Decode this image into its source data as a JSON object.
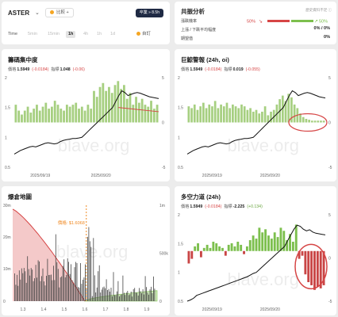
{
  "header": {
    "symbol": "ASTER",
    "compare_label": "比較",
    "time_button": "卒業 » 8.5h",
    "timeframe_label": "Time",
    "timeframes": [
      "5min",
      "15min",
      "1h",
      "4h",
      "1h",
      "1d"
    ],
    "active_timeframe_index": 2,
    "custom_label": "自訂"
  },
  "resonance": {
    "title": "共振分析",
    "settings_label": "歷史資料不足 ⓘ",
    "rows": [
      {
        "label": "漲跌機率",
        "value": ""
      },
      {
        "label": "上漲 / 下跌平均幅度",
        "value": "0% / 0%"
      },
      {
        "label": "期望值",
        "value": "0%"
      }
    ],
    "left_pct": "50%",
    "right_pct": "50%",
    "colors": {
      "neg": "#d64545",
      "pos": "#7cbf4d"
    }
  },
  "panels": {
    "p1": {
      "title": "籌碼集中度",
      "price_label": "價格",
      "price": "1.5949",
      "price_change": "(-0.0184)",
      "ind_label": "指標",
      "ind": "1.048",
      "ind_change": "(-0.06)"
    },
    "p2": {
      "title": "巨鯨警報 (24h, oi)",
      "price_label": "價格",
      "price": "1.5949",
      "price_change": "(-0.0184)",
      "ind_label": "指標",
      "ind": "0.019",
      "ind_change": "(-0.055)"
    },
    "p3": {
      "title": "爆倉地圖",
      "price_tag": "價格: $1.6068"
    },
    "p4": {
      "title": "多空力道 (24h)",
      "price_label": "價格",
      "price": "1.5949",
      "price_change": "(-0.0184)",
      "ind_label": "指標",
      "ind": "-2.225",
      "ind_change": "(+0.134)"
    }
  },
  "watermark": "blave.org",
  "chart_data": [
    {
      "type": "bar",
      "title": "籌碼集中度",
      "x_ticks": [
        "2025/09/19",
        "2025/09/20"
      ],
      "y_left_ticks": [
        "2",
        "1.5",
        "1",
        "0.5"
      ],
      "y_right_ticks": [
        "5",
        "0",
        "-5"
      ],
      "ylim_left": [
        0.5,
        2
      ],
      "ylim_right": [
        -5,
        5
      ],
      "bars": [
        0.9,
        0.6,
        0.4,
        0.6,
        0.8,
        0.5,
        0.7,
        0.9,
        0.6,
        0.8,
        1.0,
        0.7,
        0.8,
        1.1,
        0.9,
        0.7,
        0.6,
        0.9,
        0.8,
        0.9,
        1.0,
        0.7,
        0.8,
        0.6,
        0.9,
        0.7,
        1.6,
        1.3,
        1.8,
        2.0,
        1.6,
        1.8,
        1.5,
        1.9,
        2.1,
        1.7,
        1.9,
        1.2,
        1.5,
        0.9,
        1.3,
        1.0,
        1.2,
        0.9,
        0.8,
        1.1,
        0.7,
        0.9
      ],
      "line": [
        0.72,
        0.75,
        0.78,
        0.8,
        0.82,
        0.84,
        0.85,
        0.84,
        0.86,
        0.88,
        0.9,
        0.91,
        0.9,
        0.89,
        0.9,
        0.93,
        0.95,
        0.96,
        0.97,
        0.98,
        0.98,
        0.99,
        1.0,
        1.05,
        1.1,
        1.15,
        1.2,
        1.25,
        1.3,
        1.35,
        1.4,
        1.45,
        1.5,
        1.6,
        1.7,
        1.78,
        1.75,
        1.7,
        1.72,
        1.74,
        1.75,
        1.74,
        1.72,
        1.7,
        1.68,
        1.67,
        1.66,
        1.65
      ],
      "trend": [
        1.5,
        1.43
      ],
      "colors": {
        "bar": "#a6cf80",
        "line": "#111111",
        "trend": "#d64545"
      }
    },
    {
      "type": "bar",
      "title": "巨鯨警報 (24h, oi)",
      "x_ticks": [
        "2025/09/19",
        "2025/09/20"
      ],
      "y_left_ticks": [
        "2",
        "1.5",
        "1",
        "0.5"
      ],
      "y_right_ticks": [
        "5",
        "0",
        "-5"
      ],
      "bars": [
        0.9,
        0.8,
        1.0,
        0.7,
        0.9,
        1.1,
        0.8,
        1.0,
        0.9,
        1.2,
        0.8,
        1.0,
        0.9,
        1.1,
        0.8,
        1.0,
        0.9,
        0.8,
        1.0,
        0.9,
        0.7,
        0.8,
        0.6,
        0.7,
        0.5,
        0.6,
        0.9,
        0.4,
        0.6,
        0.7,
        1.0,
        1.3,
        1.5,
        1.2,
        1.6,
        1.4,
        1.0,
        0.8,
        0.5,
        0.3,
        0.2,
        0.15,
        0.1,
        0.1,
        0.1,
        0.1,
        0.1
      ],
      "line": [
        0.72,
        0.75,
        0.78,
        0.8,
        0.82,
        0.84,
        0.85,
        0.84,
        0.86,
        0.88,
        0.9,
        0.91,
        0.9,
        0.89,
        0.9,
        0.93,
        0.95,
        0.96,
        0.97,
        0.98,
        0.98,
        0.99,
        1.0,
        1.05,
        1.1,
        1.15,
        1.2,
        1.25,
        1.3,
        1.35,
        1.4,
        1.45,
        1.5,
        1.6,
        1.7,
        1.78,
        1.75,
        1.7,
        1.72,
        1.74,
        1.75,
        1.74,
        1.72,
        1.7,
        1.68,
        1.67,
        1.66
      ],
      "colors": {
        "bar": "#a6cf80",
        "line": "#111111",
        "highlight": "#d64545"
      }
    },
    {
      "type": "bar",
      "title": "爆倉地圖",
      "x_ticks": [
        "1.3",
        "1.4",
        "1.5",
        "1.6",
        "1.7",
        "1.8",
        "1.9"
      ],
      "y_left_ticks": [
        "30m",
        "20m",
        "10m",
        "0"
      ],
      "y_right_ticks": [
        "1m",
        "500k",
        "0"
      ],
      "current_price": 1.6068,
      "colors": {
        "bar": "#444444",
        "fill_red": "#f4c9c9",
        "fill_green": "#cde8b8",
        "line_red": "#d64545",
        "price": "#f08a24"
      }
    },
    {
      "type": "bar",
      "title": "多空力道 (24h)",
      "x_ticks": [
        "2025/09/19",
        "2025/09/20"
      ],
      "y_left_ticks": [
        "2",
        "1.5",
        "1",
        "0.5"
      ],
      "y_right_ticks": [
        "5",
        "0",
        "-5"
      ],
      "bars": [
        -0.8,
        -0.5,
        0.3,
        0.5,
        -0.4,
        0.2,
        0.4,
        0.2,
        0.6,
        0.5,
        0.3,
        0.2,
        -0.3,
        0.4,
        0.5,
        0.3,
        0.6,
        0.4,
        -0.2,
        0.3,
        0.7,
        1.0,
        0.8,
        1.5,
        1.2,
        1.4,
        1.0,
        0.8,
        1.2,
        0.9,
        1.5,
        1.3,
        0.7,
        1.1,
        0.6,
        1.7,
        -0.5,
        -0.3,
        -1.5,
        -2.0,
        -2.2,
        -2.5,
        -2.3,
        -2.4,
        -2.2
      ],
      "line": [
        0.5,
        0.52,
        0.55,
        0.6,
        0.62,
        0.64,
        0.66,
        0.68,
        0.7,
        0.72,
        0.74,
        0.76,
        0.78,
        0.8,
        0.82,
        0.84,
        0.86,
        0.88,
        0.9,
        0.92,
        0.95,
        0.98,
        1.0,
        1.05,
        1.1,
        1.15,
        1.2,
        1.25,
        1.3,
        1.35,
        1.4,
        1.45,
        1.55,
        1.65,
        1.75,
        1.82,
        1.8,
        1.75,
        1.72,
        1.74,
        1.7,
        1.68,
        1.67,
        1.66,
        1.65
      ],
      "colors": {
        "pos": "#7cbf4d",
        "neg": "#c94545",
        "line": "#111111",
        "highlight": "#d64545"
      }
    }
  ]
}
